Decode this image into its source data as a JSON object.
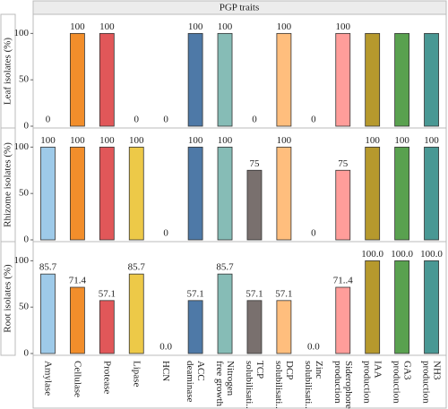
{
  "chart_data": {
    "type": "bar",
    "title": "PGP traits",
    "categories": [
      "Amylase",
      "Cellulase",
      "Protease",
      "Lipase",
      "HCN",
      "ACC\ndeaminase",
      "Nitrogen\nfree growth",
      "TCP\nsolubilisati...",
      "DCP\nsolubilisati...",
      "Zinc\nsolubilisati...",
      "Siderophore\nproduction",
      "IAA\nproduction",
      "GA3\nproduction",
      "NH3\nproduction"
    ],
    "colors": [
      "#9ecae9",
      "#f28e2b",
      "#e15759",
      "#edc948",
      null,
      "#4e79a7",
      "#86bcb6",
      "#79706e",
      "#ffbe7d",
      null,
      "#ff9d9a",
      "#b6992d",
      "#59a14f",
      "#499894"
    ],
    "ylim": [
      0,
      110
    ],
    "yticks": [
      0,
      50,
      100
    ],
    "panels": [
      {
        "ylabel": "Leaf isolates (%)",
        "values": [
          0,
          100,
          100,
          0,
          0,
          100,
          100,
          0,
          100,
          0,
          100,
          100,
          100,
          100
        ],
        "value_labels": [
          "0",
          "100",
          "100",
          "0",
          "0",
          "100",
          "100",
          "0",
          "100",
          "0",
          "100",
          null,
          null,
          null
        ]
      },
      {
        "ylabel": "Rhizome isolates (%)",
        "values": [
          100,
          100,
          100,
          100,
          0,
          100,
          100,
          75,
          100,
          0,
          75,
          100,
          100,
          100
        ],
        "value_labels": [
          "100",
          "100",
          "100",
          "100",
          "0",
          "100",
          "100",
          "75",
          "100",
          "0",
          "75",
          "100",
          "100",
          "100"
        ]
      },
      {
        "ylabel": "Root isolates (%)",
        "values": [
          85.7,
          71.4,
          57.1,
          85.7,
          0,
          57.1,
          85.7,
          57.1,
          57.1,
          0,
          71.4,
          100,
          100,
          100
        ],
        "value_labels": [
          "85.7",
          "71.4",
          "57.1",
          "85.7",
          "0.0",
          "57.1",
          "85.7",
          "57.1",
          "57.1",
          "0.0",
          "71..4",
          "100.0",
          "100.0",
          "100.0"
        ]
      }
    ]
  }
}
